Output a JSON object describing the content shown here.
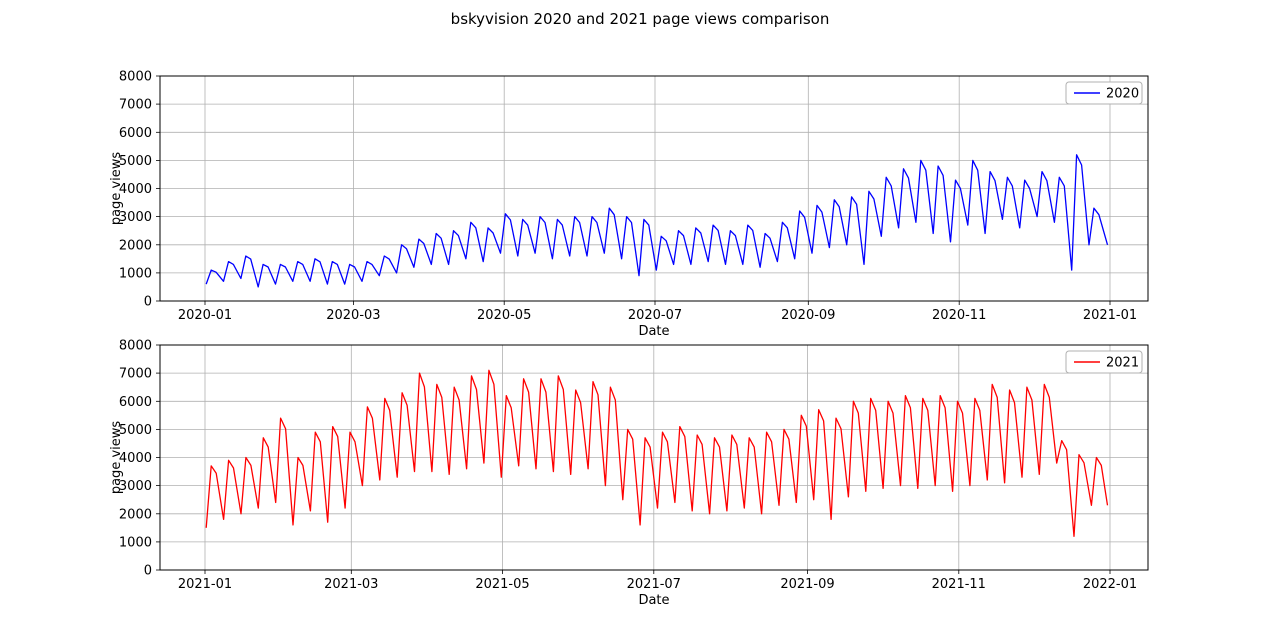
{
  "figure": {
    "title": "bskyvision 2020 and 2021 page views comparison",
    "background": "#ffffff",
    "grid_color": "#b0b0b0",
    "axis_color": "#000000"
  },
  "chart_data": [
    {
      "type": "line",
      "legend": "2020",
      "color": "#0000ff",
      "xlabel": "Date",
      "ylabel": "page views",
      "ylim": [
        0,
        8000
      ],
      "yticks": [
        0,
        1000,
        2000,
        3000,
        4000,
        5000,
        6000,
        7000,
        8000
      ],
      "xtick_labels": [
        "2020-01",
        "2020-03",
        "2020-05",
        "2020-07",
        "2020-09",
        "2020-11",
        "2021-01"
      ],
      "xtick_days": [
        0,
        60,
        121,
        182,
        244,
        305,
        366
      ],
      "days_in_year": 366,
      "grid": true,
      "legend_position": "upper right",
      "series_note": "daily page views with weekly seasonality, stored as weekly high/low envelope (52 weeks)",
      "weekly_high": [
        1100,
        1400,
        1600,
        1300,
        1300,
        1400,
        1500,
        1400,
        1300,
        1400,
        1600,
        2000,
        2200,
        2400,
        2500,
        2800,
        2600,
        3100,
        2900,
        3000,
        2900,
        3000,
        3000,
        3300,
        3000,
        2900,
        2300,
        2500,
        2600,
        2700,
        2500,
        2700,
        2400,
        2800,
        3200,
        3400,
        3600,
        3700,
        3900,
        4400,
        4700,
        5000,
        4800,
        4300,
        5000,
        4600,
        4400,
        4300,
        4600,
        4400,
        5200,
        3300
      ],
      "weekly_low": [
        600,
        700,
        800,
        500,
        600,
        700,
        700,
        600,
        600,
        700,
        900,
        1000,
        1200,
        1300,
        1300,
        1500,
        1400,
        1700,
        1600,
        1700,
        1500,
        1600,
        1600,
        1700,
        1500,
        900,
        1100,
        1300,
        1300,
        1400,
        1300,
        1300,
        1200,
        1400,
        1500,
        1700,
        1900,
        2000,
        1300,
        2300,
        2600,
        2800,
        2400,
        2100,
        2700,
        2400,
        2900,
        2600,
        3000,
        2800,
        1100,
        2000
      ],
      "end_day": 365,
      "end_value": 2000
    },
    {
      "type": "line",
      "legend": "2021",
      "color": "#ff0000",
      "xlabel": "Date",
      "ylabel": "page views",
      "ylim": [
        0,
        8000
      ],
      "yticks": [
        0,
        1000,
        2000,
        3000,
        4000,
        5000,
        6000,
        7000,
        8000
      ],
      "xtick_labels": [
        "2021-01",
        "2021-03",
        "2021-05",
        "2021-07",
        "2021-09",
        "2021-11",
        "2022-01"
      ],
      "xtick_days": [
        0,
        59,
        120,
        181,
        243,
        304,
        365
      ],
      "days_in_year": 365,
      "grid": true,
      "legend_position": "upper right",
      "series_note": "daily page views with weekly seasonality, stored as weekly high/low envelope (52 weeks)",
      "weekly_high": [
        3700,
        3900,
        4000,
        4700,
        5400,
        4000,
        4900,
        5100,
        4900,
        5800,
        6100,
        6300,
        7000,
        6600,
        6500,
        6900,
        7100,
        6200,
        6800,
        6800,
        6900,
        6400,
        6700,
        6500,
        5000,
        4700,
        4900,
        5100,
        4800,
        4700,
        4800,
        4700,
        4900,
        5000,
        5500,
        5700,
        5400,
        6000,
        6100,
        6000,
        6200,
        6100,
        6200,
        6000,
        6100,
        6600,
        6400,
        6500,
        6600,
        4600,
        4100,
        4000
      ],
      "weekly_low": [
        1500,
        1800,
        2000,
        2200,
        2400,
        1600,
        2100,
        1700,
        2200,
        3000,
        3200,
        3300,
        3500,
        3500,
        3400,
        3600,
        3800,
        3300,
        3700,
        3600,
        3500,
        3400,
        3600,
        3000,
        2500,
        1600,
        2200,
        2400,
        2100,
        2000,
        2100,
        2200,
        2000,
        2300,
        2400,
        2500,
        1800,
        2600,
        2800,
        2900,
        3000,
        2900,
        3000,
        2800,
        3000,
        3200,
        3100,
        3300,
        3400,
        3800,
        1200,
        2300
      ],
      "end_day": 364,
      "end_value": 2300
    }
  ]
}
